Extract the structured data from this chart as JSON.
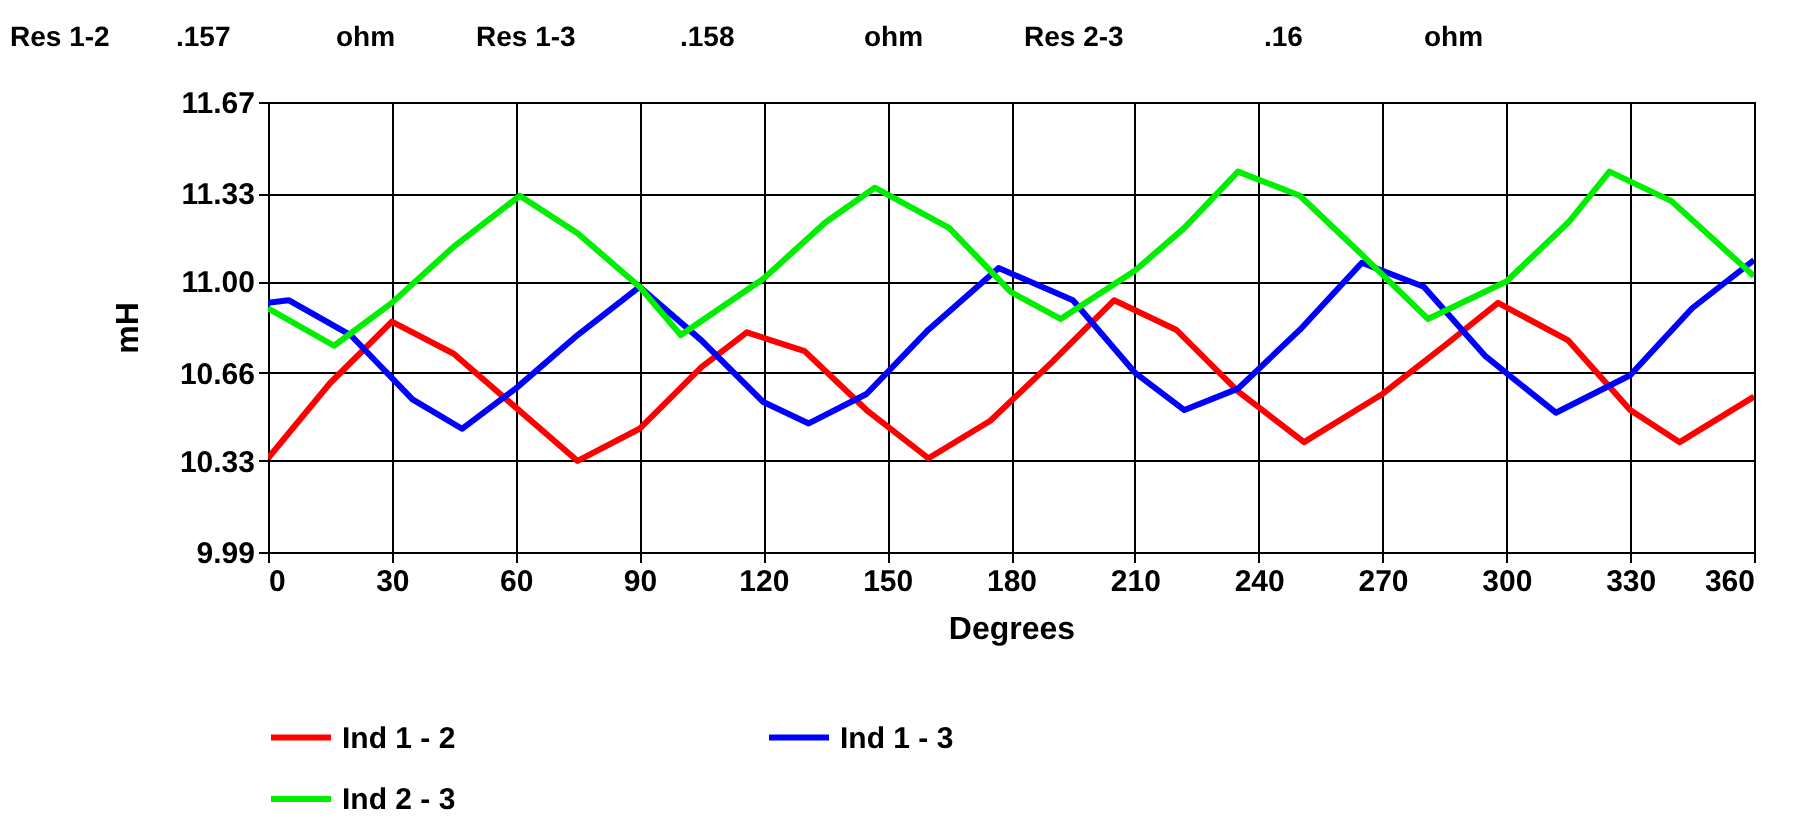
{
  "chart_data": {
    "type": "line",
    "xlabel": "Degrees",
    "ylabel": "mH",
    "annotations": [
      "Res 1-2",
      ".157",
      "ohm",
      "Res 1-3",
      ".158",
      "ohm",
      "Res 2-3",
      ".16",
      "ohm"
    ],
    "xlim": [
      0,
      360
    ],
    "xticks": [
      0,
      30,
      60,
      90,
      120,
      150,
      180,
      210,
      240,
      270,
      300,
      330,
      360
    ],
    "ylim": [
      9.99,
      11.67
    ],
    "yticks": [
      9.99,
      10.33,
      10.66,
      {
        "value": 11,
        "label": "11.00"
      },
      11.33,
      11.67
    ],
    "grid": true,
    "legend": "bottom",
    "line_style": "solid",
    "series": [
      {
        "name": "Ind 1 - 2",
        "color": "#ff0000",
        "x": [
          0,
          15,
          30,
          45,
          60,
          75,
          90,
          105,
          116,
          130,
          145,
          160,
          175,
          190,
          205,
          220,
          235,
          251,
          270,
          285,
          298,
          315,
          330,
          342,
          360
        ],
        "values": [
          10.34,
          10.62,
          10.85,
          10.73,
          10.53,
          10.33,
          10.45,
          10.68,
          10.81,
          10.74,
          10.52,
          10.34,
          10.48,
          10.7,
          10.93,
          10.82,
          10.59,
          10.4,
          10.58,
          10.76,
          10.92,
          10.78,
          10.52,
          10.4,
          10.57
        ]
      },
      {
        "name": "Ind 1 - 3",
        "color": "#0000ff",
        "x": [
          0,
          5,
          20,
          35,
          47,
          60,
          75,
          90,
          105,
          120,
          131,
          145,
          160,
          177,
          195,
          210,
          222,
          235,
          250,
          265,
          280,
          295,
          312,
          330,
          345,
          360
        ],
        "values": [
          10.92,
          10.93,
          10.8,
          10.56,
          10.45,
          10.6,
          10.8,
          10.98,
          10.78,
          10.55,
          10.47,
          10.58,
          10.82,
          11.05,
          10.93,
          10.66,
          10.52,
          10.6,
          10.82,
          11.07,
          10.98,
          10.72,
          10.51,
          10.65,
          10.9,
          11.08
        ]
      },
      {
        "name": "Ind 2 - 3",
        "color": "#00ee00",
        "x": [
          0,
          16,
          30,
          45,
          61,
          75,
          90,
          100,
          120,
          135,
          147,
          165,
          180,
          192,
          210,
          222,
          235,
          250,
          265,
          281,
          300,
          315,
          325,
          340,
          360
        ],
        "values": [
          10.9,
          10.76,
          10.92,
          11.13,
          11.32,
          11.18,
          10.98,
          10.8,
          11.01,
          11.22,
          11.35,
          11.2,
          10.96,
          10.86,
          11.04,
          11.2,
          11.41,
          11.32,
          11.1,
          10.86,
          11.0,
          11.22,
          11.41,
          11.3,
          11.02
        ]
      }
    ]
  }
}
